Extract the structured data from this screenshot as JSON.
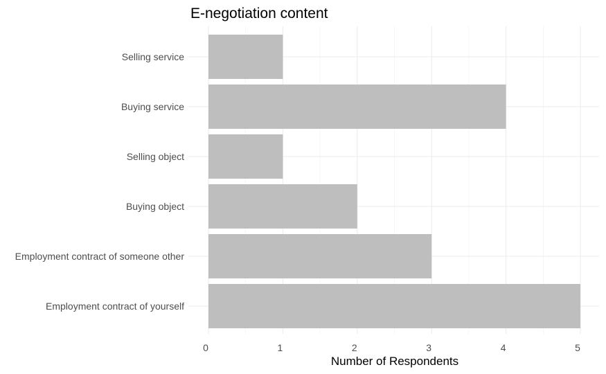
{
  "chart_data": {
    "type": "bar",
    "orientation": "horizontal",
    "title": "E-negotiation content",
    "xlabel": "Number of Respondents",
    "ylabel": "",
    "categories": [
      "Selling service",
      "Buying service",
      "Selling object",
      "Buying object",
      "Employment contract of someone other",
      "Employment contract of yourself"
    ],
    "values": [
      1,
      4,
      1,
      2,
      3,
      5
    ],
    "xlim": [
      0,
      5
    ],
    "xticks": [
      0,
      1,
      2,
      3,
      4,
      5
    ],
    "grid": true,
    "bar_color": "#bebebe",
    "legend": "none"
  }
}
